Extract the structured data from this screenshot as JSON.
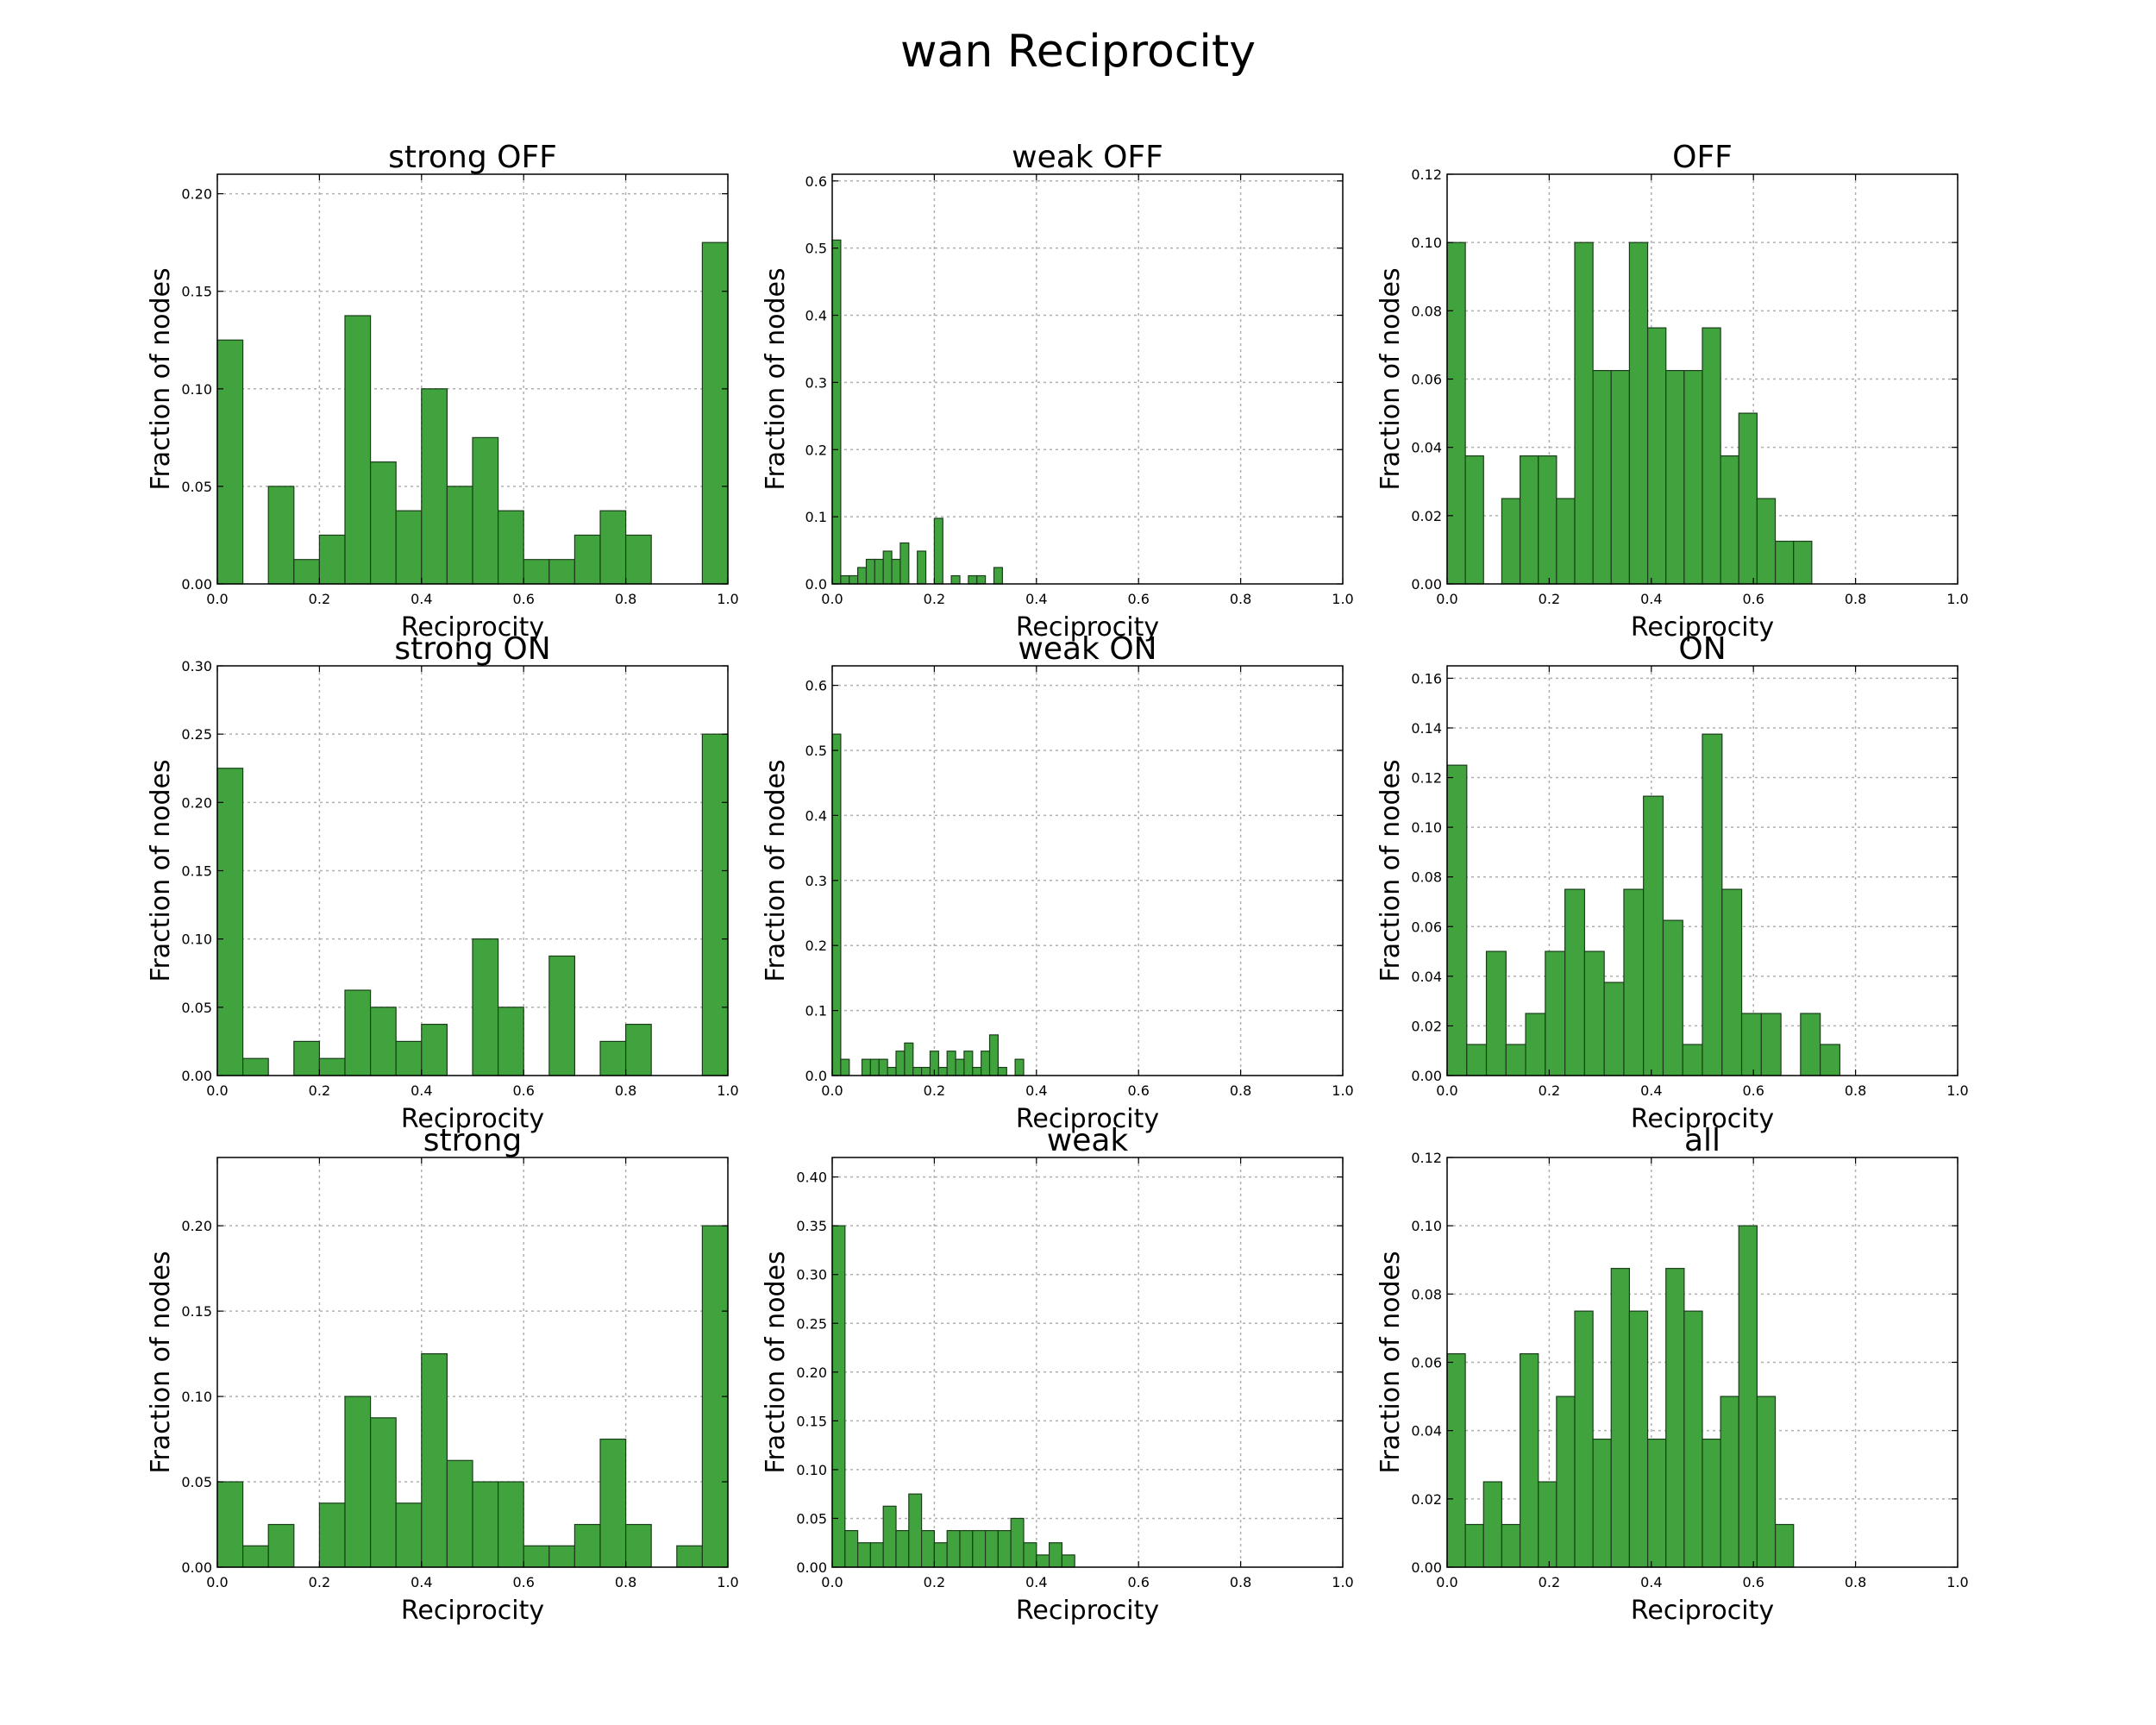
{
  "title": "wan Reciprocity",
  "colors": {
    "bar": "#41a33d",
    "bar_edge": "#1b3d1b",
    "grid": "#b0b0b0"
  },
  "chart_data": [
    {
      "type": "bar",
      "title": "strong OFF",
      "xlabel": "Reciprocity",
      "ylabel": "Fraction of nodes",
      "xlim": [
        0.0,
        1.0
      ],
      "ylim": [
        0.0,
        0.21
      ],
      "xticks": [
        "0.0",
        "0.2",
        "0.4",
        "0.6",
        "0.8",
        "1.0"
      ],
      "yticks": [
        "0.00",
        "0.05",
        "0.10",
        "0.15",
        "0.20"
      ],
      "grid": true,
      "bin_width": 0.05,
      "x": [
        0.0,
        0.1,
        0.15,
        0.2,
        0.25,
        0.3,
        0.35,
        0.4,
        0.45,
        0.5,
        0.55,
        0.6,
        0.65,
        0.7,
        0.75,
        0.8,
        0.95
      ],
      "values": [
        0.125,
        0.05,
        0.0125,
        0.025,
        0.1375,
        0.0625,
        0.0375,
        0.1,
        0.05,
        0.075,
        0.0375,
        0.0125,
        0.0125,
        0.025,
        0.0375,
        0.025,
        0.175
      ]
    },
    {
      "type": "bar",
      "title": "weak OFF",
      "xlabel": "Reciprocity",
      "ylabel": "Fraction of nodes",
      "xlim": [
        0.0,
        1.0
      ],
      "ylim": [
        0.0,
        0.61
      ],
      "xticks": [
        "0.0",
        "0.2",
        "0.4",
        "0.6",
        "0.8",
        "1.0"
      ],
      "yticks": [
        "0.0",
        "0.1",
        "0.2",
        "0.3",
        "0.4",
        "0.5",
        "0.6"
      ],
      "grid": true,
      "bin_width": 0.0167,
      "x": [
        0.0,
        0.0167,
        0.0333,
        0.05,
        0.0667,
        0.0833,
        0.1,
        0.1167,
        0.1333,
        0.1667,
        0.2,
        0.2333,
        0.2667,
        0.2833,
        0.3167
      ],
      "values": [
        0.512,
        0.0122,
        0.0122,
        0.0244,
        0.0366,
        0.0366,
        0.0488,
        0.0366,
        0.061,
        0.0488,
        0.0976,
        0.0122,
        0.0122,
        0.0122,
        0.0244
      ]
    },
    {
      "type": "bar",
      "title": "OFF",
      "xlabel": "Reciprocity",
      "ylabel": "Fraction of nodes",
      "xlim": [
        0.0,
        1.0
      ],
      "ylim": [
        0.0,
        0.12
      ],
      "xticks": [
        "0.0",
        "0.2",
        "0.4",
        "0.6",
        "0.8",
        "1.0"
      ],
      "yticks": [
        "0.00",
        "0.02",
        "0.04",
        "0.06",
        "0.08",
        "0.10",
        "0.12"
      ],
      "grid": true,
      "bin_width": 0.0357,
      "x": [
        0.0,
        0.0357,
        0.1071,
        0.1429,
        0.1786,
        0.2143,
        0.25,
        0.2857,
        0.3214,
        0.3571,
        0.3929,
        0.4286,
        0.4643,
        0.5,
        0.5357,
        0.5714,
        0.6071,
        0.6429,
        0.6786
      ],
      "values": [
        0.1,
        0.0375,
        0.025,
        0.0375,
        0.0375,
        0.025,
        0.1,
        0.0625,
        0.0625,
        0.1,
        0.075,
        0.0625,
        0.0625,
        0.075,
        0.0375,
        0.05,
        0.025,
        0.0125,
        0.0125
      ]
    },
    {
      "type": "bar",
      "title": "strong ON",
      "xlabel": "Reciprocity",
      "ylabel": "Fraction of nodes",
      "xlim": [
        0.0,
        1.0
      ],
      "ylim": [
        0.0,
        0.3
      ],
      "xticks": [
        "0.0",
        "0.2",
        "0.4",
        "0.6",
        "0.8",
        "1.0"
      ],
      "yticks": [
        "0.00",
        "0.05",
        "0.10",
        "0.15",
        "0.20",
        "0.25",
        "0.30"
      ],
      "grid": true,
      "bin_width": 0.05,
      "x": [
        0.0,
        0.05,
        0.15,
        0.2,
        0.25,
        0.3,
        0.35,
        0.4,
        0.5,
        0.55,
        0.65,
        0.75,
        0.8,
        0.95
      ],
      "values": [
        0.225,
        0.0125,
        0.025,
        0.0125,
        0.0625,
        0.05,
        0.025,
        0.0375,
        0.1,
        0.05,
        0.0875,
        0.025,
        0.0375,
        0.25
      ]
    },
    {
      "type": "bar",
      "title": "weak ON",
      "xlabel": "Reciprocity",
      "ylabel": "Fraction of nodes",
      "xlim": [
        0.0,
        1.0
      ],
      "ylim": [
        0.0,
        0.63
      ],
      "xticks": [
        "0.0",
        "0.2",
        "0.4",
        "0.6",
        "0.8",
        "1.0"
      ],
      "yticks": [
        "0.0",
        "0.1",
        "0.2",
        "0.3",
        "0.4",
        "0.5",
        "0.6"
      ],
      "grid": true,
      "bin_width": 0.0167,
      "x": [
        0.0,
        0.0167,
        0.0583,
        0.075,
        0.0917,
        0.1083,
        0.125,
        0.1417,
        0.1583,
        0.175,
        0.1917,
        0.2083,
        0.225,
        0.2417,
        0.2583,
        0.275,
        0.2917,
        0.3083,
        0.325,
        0.3583
      ],
      "values": [
        0.525,
        0.025,
        0.025,
        0.025,
        0.025,
        0.0125,
        0.0375,
        0.05,
        0.0125,
        0.0125,
        0.0375,
        0.0125,
        0.0375,
        0.025,
        0.0375,
        0.0125,
        0.0375,
        0.0625,
        0.0125,
        0.025
      ]
    },
    {
      "type": "bar",
      "title": "ON",
      "xlabel": "Reciprocity",
      "ylabel": "Fraction of nodes",
      "xlim": [
        0.0,
        1.0
      ],
      "ylim": [
        0.0,
        0.165
      ],
      "xticks": [
        "0.0",
        "0.2",
        "0.4",
        "0.6",
        "0.8",
        "1.0"
      ],
      "yticks": [
        "0.00",
        "0.02",
        "0.04",
        "0.06",
        "0.08",
        "0.10",
        "0.12",
        "0.14",
        "0.16"
      ],
      "grid": true,
      "bin_width": 0.0385,
      "x": [
        0.0,
        0.0385,
        0.0769,
        0.1154,
        0.1538,
        0.1923,
        0.2308,
        0.2692,
        0.3077,
        0.3462,
        0.3846,
        0.4231,
        0.4615,
        0.5,
        0.5385,
        0.5769,
        0.6154,
        0.6923,
        0.7308
      ],
      "values": [
        0.125,
        0.0125,
        0.05,
        0.0125,
        0.025,
        0.05,
        0.075,
        0.05,
        0.0375,
        0.075,
        0.1125,
        0.0625,
        0.0125,
        0.1375,
        0.075,
        0.025,
        0.025,
        0.025,
        0.0125
      ]
    },
    {
      "type": "bar",
      "title": "strong",
      "xlabel": "Reciprocity",
      "ylabel": "Fraction of nodes",
      "xlim": [
        0.0,
        1.0
      ],
      "ylim": [
        0.0,
        0.24
      ],
      "xticks": [
        "0.0",
        "0.2",
        "0.4",
        "0.6",
        "0.8",
        "1.0"
      ],
      "yticks": [
        "0.00",
        "0.05",
        "0.10",
        "0.15",
        "0.20"
      ],
      "grid": true,
      "bin_width": 0.05,
      "x": [
        0.0,
        0.05,
        0.1,
        0.2,
        0.25,
        0.3,
        0.35,
        0.4,
        0.45,
        0.5,
        0.55,
        0.6,
        0.65,
        0.7,
        0.75,
        0.8,
        0.9,
        0.95
      ],
      "values": [
        0.05,
        0.0125,
        0.025,
        0.0375,
        0.1,
        0.0875,
        0.0375,
        0.125,
        0.0625,
        0.05,
        0.05,
        0.0125,
        0.0125,
        0.025,
        0.075,
        0.025,
        0.0125,
        0.2
      ]
    },
    {
      "type": "bar",
      "title": "weak",
      "xlabel": "Reciprocity",
      "ylabel": "Fraction of nodes",
      "xlim": [
        0.0,
        1.0
      ],
      "ylim": [
        0.0,
        0.42
      ],
      "xticks": [
        "0.0",
        "0.2",
        "0.4",
        "0.6",
        "0.8",
        "1.0"
      ],
      "yticks": [
        "0.00",
        "0.05",
        "0.10",
        "0.15",
        "0.20",
        "0.25",
        "0.30",
        "0.35",
        "0.40"
      ],
      "grid": true,
      "bin_width": 0.025,
      "x": [
        0.0,
        0.025,
        0.05,
        0.075,
        0.1,
        0.125,
        0.15,
        0.175,
        0.2,
        0.225,
        0.25,
        0.275,
        0.3,
        0.325,
        0.35,
        0.375,
        0.4,
        0.425,
        0.45
      ],
      "values": [
        0.35,
        0.0375,
        0.025,
        0.025,
        0.0625,
        0.0375,
        0.075,
        0.0375,
        0.025,
        0.0375,
        0.0375,
        0.0375,
        0.0375,
        0.0375,
        0.05,
        0.025,
        0.0125,
        0.025,
        0.0125
      ]
    },
    {
      "type": "bar",
      "title": "all",
      "xlabel": "Reciprocity",
      "ylabel": "Fraction of nodes",
      "xlim": [
        0.0,
        1.0
      ],
      "ylim": [
        0.0,
        0.12
      ],
      "xticks": [
        "0.0",
        "0.2",
        "0.4",
        "0.6",
        "0.8",
        "1.0"
      ],
      "yticks": [
        "0.00",
        "0.02",
        "0.04",
        "0.06",
        "0.08",
        "0.10",
        "0.12"
      ],
      "grid": true,
      "bin_width": 0.0357,
      "x": [
        0.0,
        0.0357,
        0.0714,
        0.1071,
        0.1429,
        0.1786,
        0.2143,
        0.25,
        0.2857,
        0.3214,
        0.3571,
        0.3929,
        0.4286,
        0.4643,
        0.5,
        0.5357,
        0.5714,
        0.6071,
        0.6429
      ],
      "values": [
        0.0625,
        0.0125,
        0.025,
        0.0125,
        0.0625,
        0.025,
        0.05,
        0.075,
        0.0375,
        0.0875,
        0.075,
        0.0375,
        0.0875,
        0.075,
        0.0375,
        0.05,
        0.1,
        0.05,
        0.0125
      ]
    }
  ]
}
